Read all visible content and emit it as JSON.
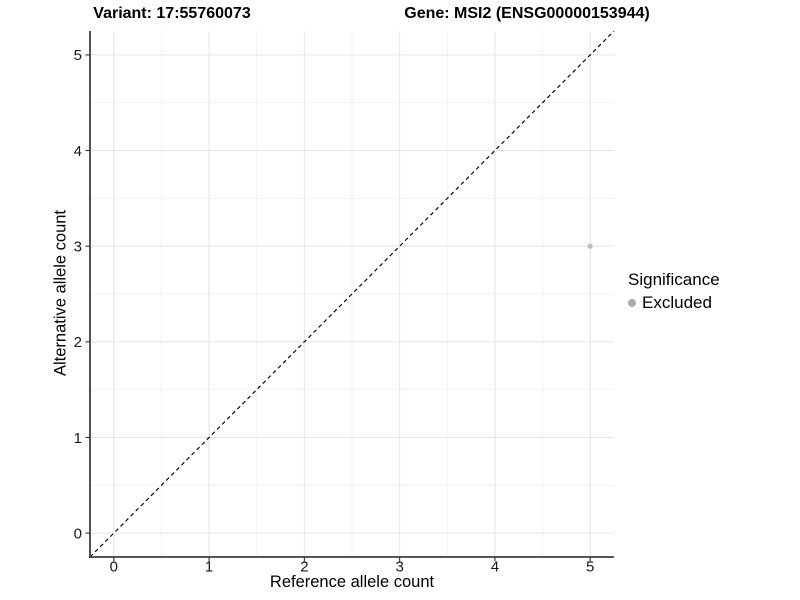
{
  "chart_data": {
    "type": "scatter",
    "title_left": "Variant: 17:55760073",
    "title_right": "Gene: MSI2 (ENSG00000153944)",
    "xlabel": "Reference allele count",
    "ylabel": "Alternative allele count",
    "xlim": [
      -0.25,
      5.25
    ],
    "ylim": [
      -0.25,
      5.25
    ],
    "xticks": [
      0,
      1,
      2,
      3,
      4,
      5
    ],
    "yticks": [
      0,
      1,
      2,
      3,
      4,
      5
    ],
    "xminor": [
      0.5,
      1.5,
      2.5,
      3.5,
      4.5
    ],
    "yminor": [
      0.5,
      1.5,
      2.5,
      3.5,
      4.5
    ],
    "grid": "major-and-minor",
    "series": [
      {
        "name": "Excluded",
        "color": "#bdbdbd",
        "points": [
          {
            "x": 5,
            "y": 3
          }
        ]
      }
    ],
    "reference_line": {
      "kind": "identity",
      "slope": 1,
      "intercept": 0,
      "style": "dashed",
      "color": "#000000"
    },
    "legend": {
      "title": "Significance",
      "position": "right",
      "items": [
        {
          "label": "Excluded",
          "color": "#ababab"
        }
      ]
    },
    "colors": {
      "background": "#ffffff",
      "grid_major": "#e4e4e4",
      "grid_minor": "#f2f2f2",
      "axis_line": "#3f3f3f",
      "tick": "#333333",
      "tick_label": "#191919",
      "title": "#000000"
    }
  }
}
